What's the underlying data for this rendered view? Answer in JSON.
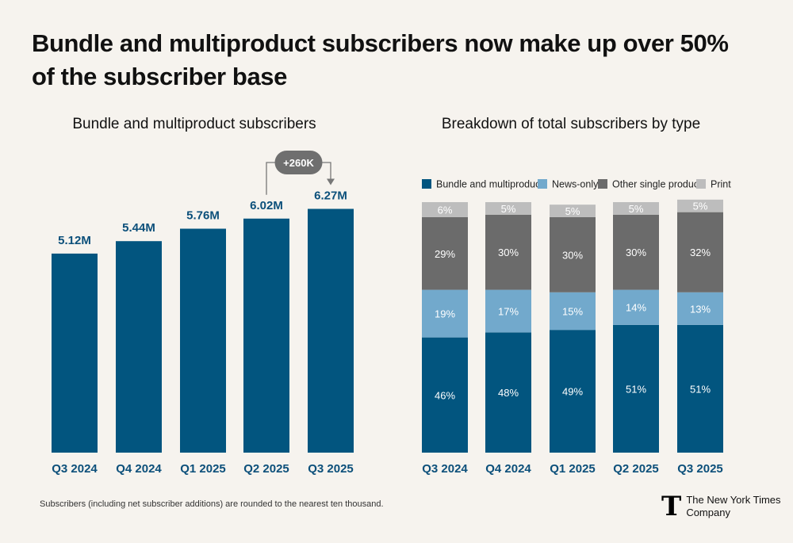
{
  "headline": "Bundle and multiproduct subscribers now make up over 50% of the subscriber base",
  "footnote": "Subscribers (including net subscriber additions) are rounded to the nearest ten thousand.",
  "logo": {
    "mark": "T",
    "line1": "The New York Times",
    "line2": "Company"
  },
  "colors": {
    "bundle": "#02557f",
    "news_only": "#72a9cc",
    "other_single": "#6b6b6b",
    "print": "#bdbdbd",
    "text_dark": "#111111",
    "axis_label": "#0b4f7a"
  },
  "chart_data": [
    {
      "type": "bar",
      "title": "Bundle and multiproduct subscribers",
      "categories": [
        "Q3 2024",
        "Q4 2024",
        "Q1 2025",
        "Q2 2025",
        "Q3 2025"
      ],
      "values": [
        5.12,
        5.44,
        5.76,
        6.02,
        6.27
      ],
      "value_labels": [
        "5.12M",
        "5.44M",
        "5.76M",
        "6.02M",
        "6.27M"
      ],
      "unit": "M",
      "ylim": [
        0,
        7
      ],
      "annotation": {
        "text": "+260K",
        "from": "Q2 2025",
        "to": "Q3 2025"
      },
      "grid": false
    },
    {
      "type": "bar",
      "stacked": true,
      "title": "Breakdown of total subscribers by type",
      "categories": [
        "Q3 2024",
        "Q4 2024",
        "Q1 2025",
        "Q2 2025",
        "Q3 2025"
      ],
      "legend_position": "top",
      "series": [
        {
          "name": "Bundle and multiproduct",
          "values": [
            46,
            48,
            49,
            51,
            51
          ],
          "color": "#02557f"
        },
        {
          "name": "News-only",
          "values": [
            19,
            17,
            15,
            14,
            13
          ],
          "color": "#72a9cc"
        },
        {
          "name": "Other single product",
          "values": [
            29,
            30,
            30,
            30,
            32
          ],
          "color": "#6b6b6b"
        },
        {
          "name": "Print",
          "values": [
            6,
            5,
            5,
            5,
            5
          ],
          "color": "#bdbdbd"
        }
      ],
      "unit": "%",
      "grid": false
    }
  ]
}
